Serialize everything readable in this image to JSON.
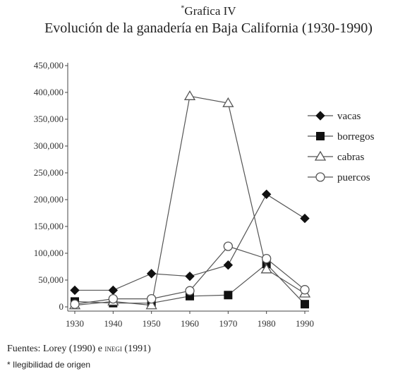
{
  "title_prefix": "*",
  "title_label": "Grafica IV",
  "title_main": "Evolución de la ganadería en Baja California (1930-1990)",
  "sources": {
    "prefix": "Fuentes: Lorey (1990) e ",
    "org": "inegi",
    "suffix": " (1991)"
  },
  "note": "* Ilegibilidad de origen",
  "chart_data": {
    "type": "line",
    "x": [
      1930,
      1940,
      1950,
      1960,
      1970,
      1980,
      1990
    ],
    "x_ticks": [
      "1930",
      "1940",
      "1950",
      "1960",
      "1970",
      "1980",
      "1990"
    ],
    "y_ticks": [
      "0",
      "50,000",
      "100,000",
      "150,000",
      "200,000",
      "250,000",
      "300,000",
      "350,000",
      "400,000",
      "450,000"
    ],
    "ylim": [
      0,
      450000
    ],
    "grid": false,
    "legend_position": "right",
    "series": [
      {
        "name": "vacas",
        "marker": "diamond-filled",
        "values": [
          31000,
          31000,
          62000,
          57000,
          78000,
          210000,
          165000
        ]
      },
      {
        "name": "borregos",
        "marker": "square-filled",
        "values": [
          10000,
          7000,
          7000,
          20000,
          22000,
          80000,
          5000
        ]
      },
      {
        "name": "cabras",
        "marker": "triangle-open",
        "values": [
          3000,
          10000,
          3000,
          393000,
          380000,
          70000,
          25000
        ]
      },
      {
        "name": "puercos",
        "marker": "circle-open",
        "values": [
          5000,
          15000,
          15000,
          30000,
          113000,
          90000,
          32000
        ]
      }
    ]
  }
}
